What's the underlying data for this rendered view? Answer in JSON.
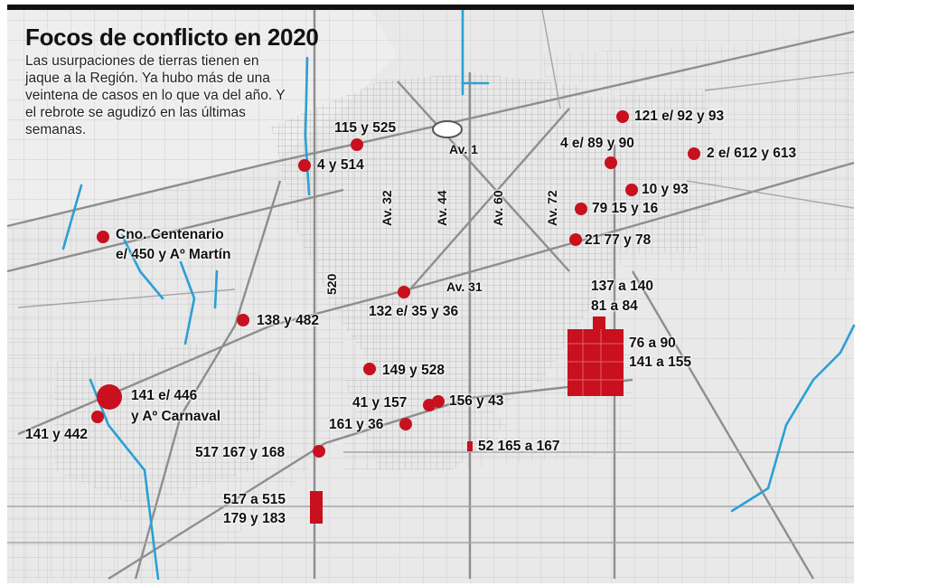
{
  "header": {
    "title": "Focos de conflicto en 2020",
    "subtitle": "Las usurpaciones de tierras tienen en jaque a la Región. Ya hubo más de una veintena de casos en lo que va del año. Y el rebrote se agudizó en las últimas semanas."
  },
  "streets": {
    "av1": "Av. 1",
    "av32": "Av. 32",
    "av44": "Av. 44",
    "av60": "Av. 60",
    "av72": "Av. 72",
    "av31": "Av. 31",
    "s520": "520"
  },
  "markers": {
    "m1": "115 y 525",
    "m2": "4 y 514",
    "m3": "121 e/ 92 y 93",
    "m4": "4 e/ 89 y 90",
    "m5": "2 e/ 612 y 613",
    "m6": "10 y 93",
    "m7": "79 15 y 16",
    "m8": "21 77 y 78",
    "m9a": "Cno. Centenario",
    "m9b": "e/ 450 y Aº Martín",
    "m10": "132 e/ 35 y 36",
    "m11": "138 y 482",
    "m12a": "137 a 140",
    "m12b": "81 a 84",
    "m13a": "76 a 90",
    "m13b": "141 a 155",
    "m14": "149 y 528",
    "m15a": "141 e/ 446",
    "m15b": "y Aº Carnaval",
    "m16": "141 y 442",
    "m17": "41 y 157",
    "m18": "156 y 43",
    "m19": "161 y 36",
    "m20": "517 167 y 168",
    "m21": "52 165 a 167",
    "m22a": "517 a 515",
    "m22b": "179 y 183"
  },
  "colors": {
    "marker": "#c8101e",
    "water": "#2aa0d6",
    "street": "#9a9a9a",
    "grid": "#c8c8c8"
  }
}
